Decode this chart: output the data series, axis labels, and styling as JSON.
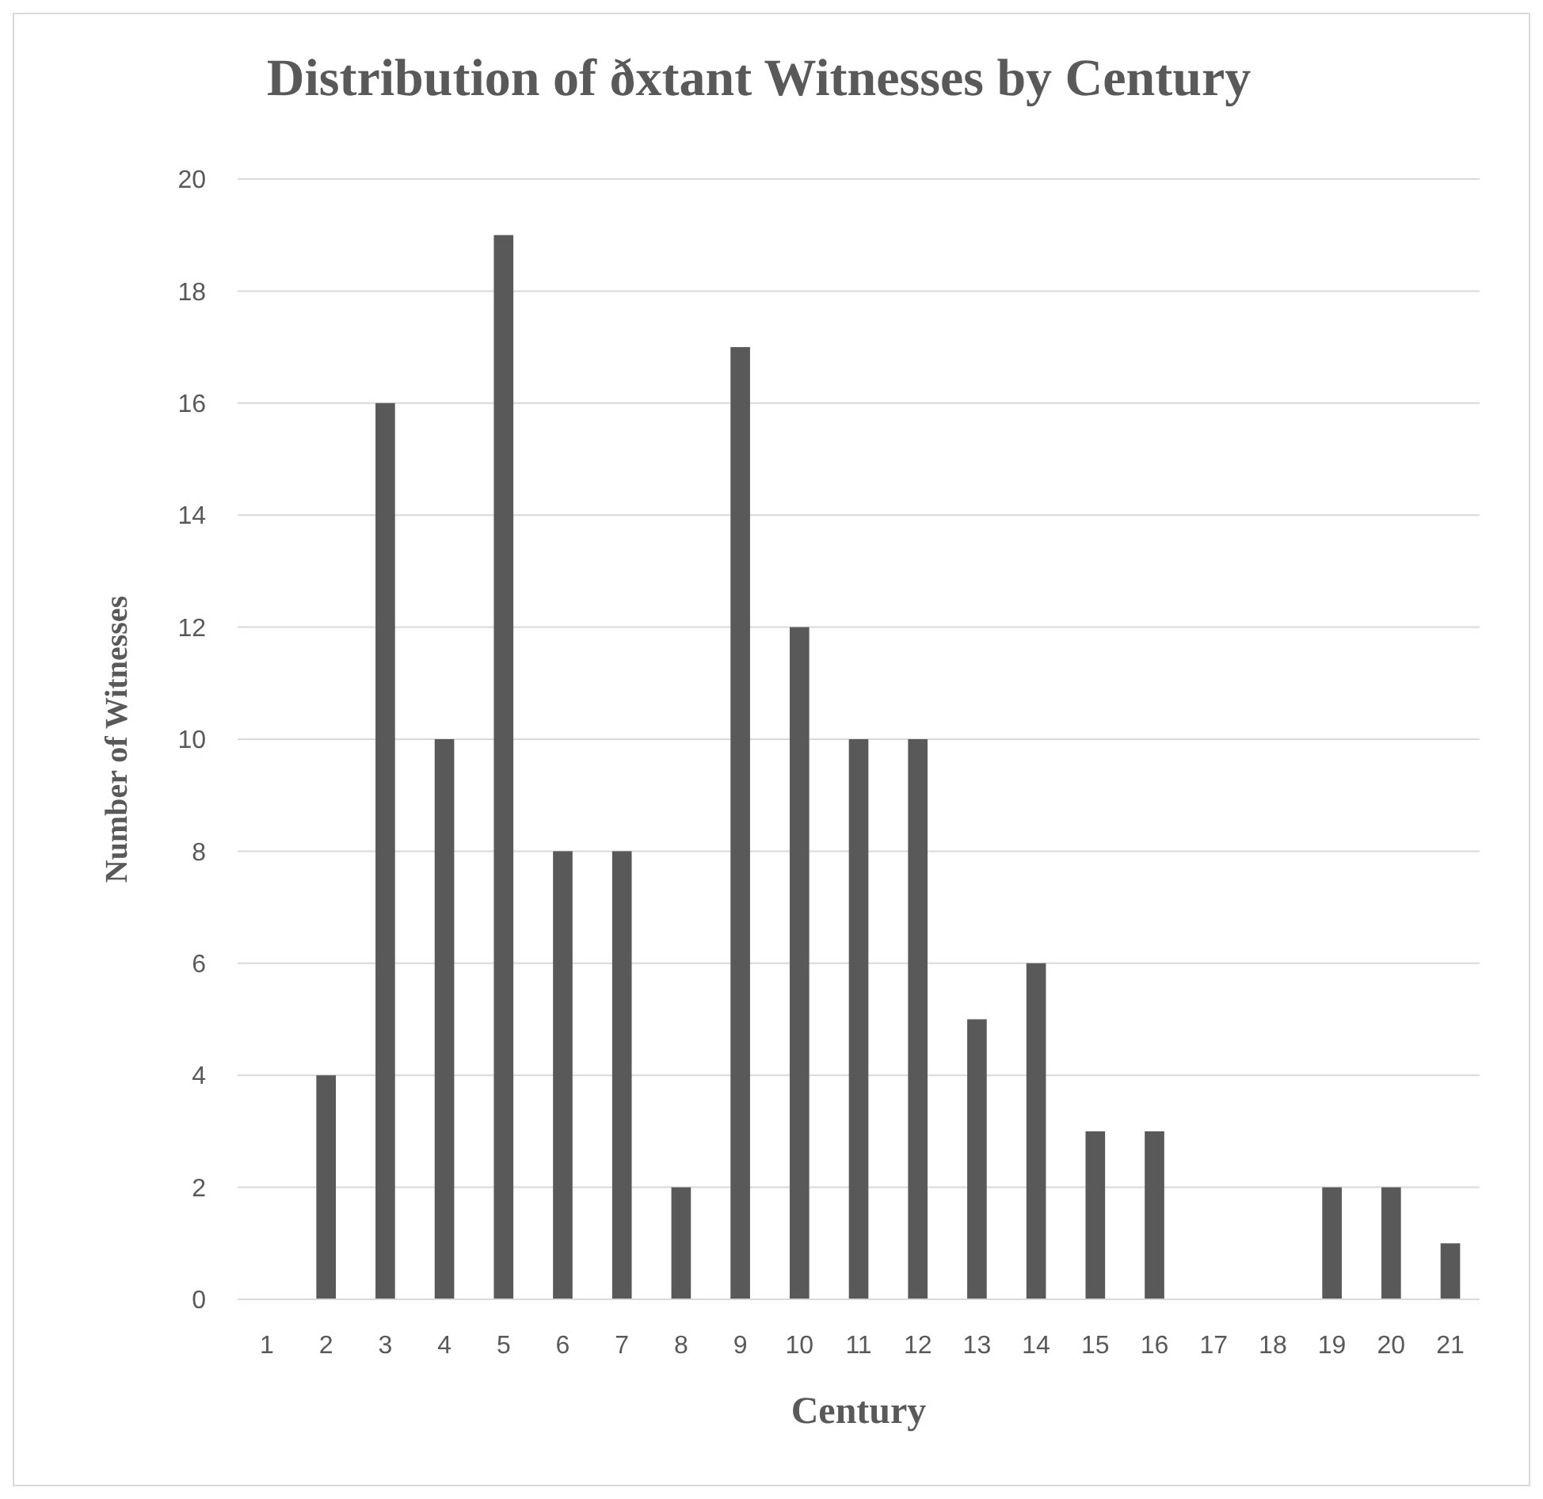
{
  "chart_data": {
    "type": "bar",
    "title": "Distribution of ðxtant Witnesses by Century",
    "xlabel": "Century",
    "ylabel": "Number of Witnesses",
    "categories": [
      "1",
      "2",
      "3",
      "4",
      "5",
      "6",
      "7",
      "8",
      "9",
      "10",
      "11",
      "12",
      "13",
      "14",
      "15",
      "16",
      "17",
      "18",
      "19",
      "20",
      "21"
    ],
    "values": [
      0,
      4,
      16,
      10,
      19,
      8,
      8,
      2,
      17,
      12,
      10,
      10,
      5,
      6,
      3,
      3,
      0,
      0,
      2,
      2,
      1
    ],
    "color": "#595959",
    "ylim": [
      0,
      20
    ],
    "yticks": [
      0,
      2,
      4,
      6,
      8,
      10,
      12,
      14,
      16,
      18,
      20
    ],
    "grid": "y"
  }
}
